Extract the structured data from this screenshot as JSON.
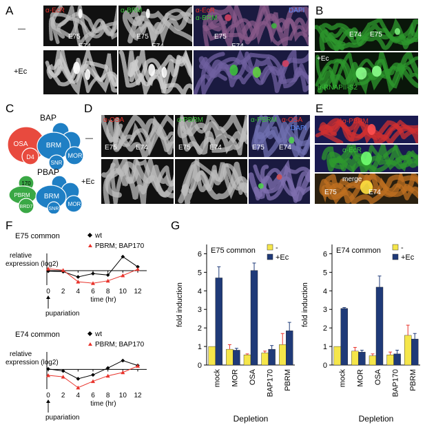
{
  "labels": {
    "A": "A",
    "B": "B",
    "C": "C",
    "D": "D",
    "E": "E",
    "F": "F",
    "G": "G"
  },
  "panelA": {
    "row_minus": "—",
    "row_ec": "+Ec",
    "ch1": "α-EcR",
    "ch2": "α-BRM",
    "ch3a": "α-EcR",
    "ch3b": "α-BRM",
    "ch3c": "DAPI",
    "e75": "E75",
    "e74": "E74"
  },
  "panelB": {
    "e74": "E74",
    "e75": "E75",
    "ec": "+Ec",
    "ab": "α-RNAPII-S2"
  },
  "panelC": {
    "bap_title": "BAP",
    "pbap_title": "PBAP",
    "bap": {
      "osa": "OSA",
      "d4": "D4",
      "brm": "BRM",
      "snr": "SNR",
      "mor": "MOR"
    },
    "pbap": {
      "p170": "170",
      "pbrm": "PBRM",
      "brd7": "BRD7",
      "brm": "BRM",
      "snr": "SNR",
      "mor": "MOR"
    },
    "colors": {
      "red": "#e84a3e",
      "blue": "#1f7fc4",
      "green": "#3aa845"
    }
  },
  "panelD": {
    "row_minus": "—",
    "row_ec": "+Ec",
    "ch1": "α-OSA",
    "ch2": "α-PBRM",
    "ch3a": "α-PBRM",
    "ch3b": "α-OSA",
    "ch3c": "DAPI",
    "e75": "E75",
    "e74": "E74"
  },
  "panelE": {
    "ch1": "α-PBRM",
    "ch2": "α-EcR",
    "ch3": "merge",
    "e75": "E75",
    "e74": "E74"
  },
  "panelF": {
    "top": {
      "title": "E75 common",
      "legend_wt": "wt",
      "legend_mut": "PBRM; BAP170",
      "ylabel1": "relative",
      "ylabel2": "expression (log2)",
      "xlabel": "time (hr)",
      "pupariation": "pupariation",
      "x": [
        0,
        2,
        4,
        6,
        8,
        10,
        12
      ],
      "xticks": [
        "0",
        "2",
        "4",
        "6",
        "8",
        "10",
        "12"
      ],
      "wt": [
        -0.1,
        -0.2,
        -1.3,
        -0.6,
        -0.9,
        2.9,
        0.8
      ],
      "mut": [
        0.4,
        0.1,
        -2.3,
        -2.6,
        -2.1,
        -1.0,
        0.3
      ],
      "ylim": [
        -3,
        3
      ]
    },
    "bottom": {
      "title": "E74 common",
      "legend_wt": "wt",
      "legend_mut": "PBRM; BAP170",
      "ylabel1": "relative",
      "ylabel2": "expression (log2)",
      "xlabel": "time (hr)",
      "pupariation": "pupariation",
      "x": [
        0,
        2,
        4,
        6,
        8,
        10,
        12
      ],
      "xticks": [
        "0",
        "2",
        "4",
        "6",
        "8",
        "10",
        "12"
      ],
      "wt": [
        0.1,
        -0.3,
        -1.9,
        -1.1,
        0.3,
        1.8,
        0.8
      ],
      "mut": [
        -1.2,
        -1.5,
        -3.7,
        -2.4,
        -1.3,
        -0.6,
        0.7
      ],
      "ylim": [
        -4,
        3
      ]
    }
  },
  "chart_data": [
    {
      "type": "bar",
      "title": "E75 common",
      "categories": [
        "mock",
        "MOR",
        "OSA",
        "BAP170",
        "PBRM"
      ],
      "series": [
        {
          "name": "-",
          "values": [
            1.0,
            0.85,
            0.55,
            0.65,
            1.1
          ],
          "errors": [
            0,
            0.25,
            0.05,
            0.1,
            0.6
          ],
          "color": "#f5e64a"
        },
        {
          "name": "+Ec",
          "values": [
            4.7,
            0.8,
            5.1,
            0.85,
            1.85
          ],
          "errors": [
            0.6,
            0.1,
            0.4,
            0.2,
            0.45
          ],
          "color": "#1f3a78"
        }
      ],
      "xlabel": "Depletion",
      "ylabel": "fold induction",
      "yticks": [
        "0",
        "1",
        "2",
        "3",
        "4",
        "5",
        "6"
      ],
      "ylim": [
        0,
        6.5
      ]
    },
    {
      "type": "bar",
      "title": "E74 common",
      "categories": [
        "mock",
        "MOR",
        "OSA",
        "BAP170",
        "PBRM"
      ],
      "series": [
        {
          "name": "-",
          "values": [
            1.0,
            0.75,
            0.5,
            0.55,
            1.6
          ],
          "errors": [
            0,
            0.2,
            0.1,
            0.15,
            0.55
          ],
          "color": "#f5e64a"
        },
        {
          "name": "+Ec",
          "values": [
            3.05,
            0.7,
            4.2,
            0.6,
            1.4
          ],
          "errors": [
            0.05,
            0.1,
            0.6,
            0.2,
            0.3
          ],
          "color": "#1f3a78"
        }
      ],
      "xlabel": "Depletion",
      "ylabel": "fold induction",
      "yticks": [
        "0",
        "1",
        "2",
        "3",
        "4",
        "5",
        "6"
      ],
      "ylim": [
        0,
        6.5
      ]
    }
  ]
}
